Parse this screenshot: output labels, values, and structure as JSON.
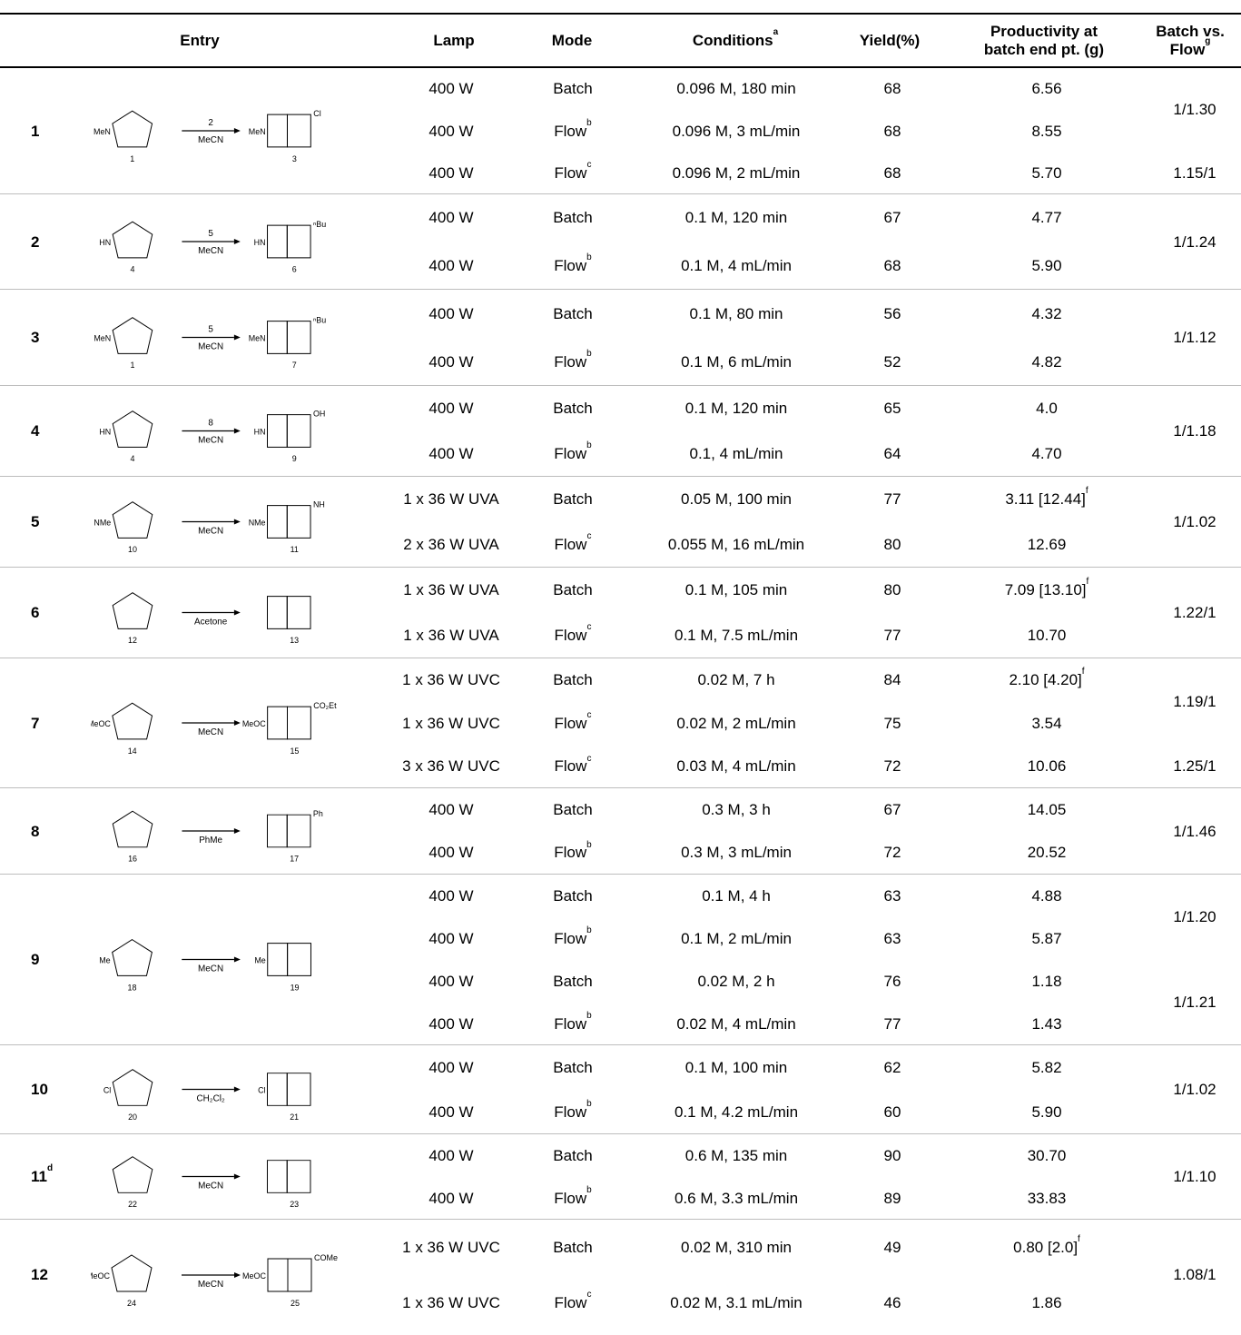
{
  "headers": {
    "entry": "Entry",
    "lamp": "Lamp",
    "mode": "Mode",
    "conditions": "Conditions",
    "conditions_sup": "a",
    "yield": "Yield(%)",
    "prod_l1": "Productivity at",
    "prod_l2": "batch end pt. (g)",
    "bvf_l1": "Batch vs.",
    "bvf_l2": "Flow",
    "bvf_sup": "g"
  },
  "entries": [
    {
      "entry": "1",
      "entry_sup": "",
      "height": 139,
      "scheme": {
        "reagent": "2",
        "solvent": "MeCN",
        "left": "1",
        "right": "3",
        "lsub": "MeN",
        "rsub": "MeN",
        "rgroup": "Cl"
      },
      "rows": [
        {
          "lamp": "400 W",
          "mode": "Batch",
          "mode_sup": "",
          "conditions": "0.096 M, 180 min",
          "yield": "68",
          "productivity": "6.56",
          "prod_sup": ""
        },
        {
          "lamp": "400 W",
          "mode": "Flow",
          "mode_sup": "b",
          "conditions": "0.096 M, 3 mL/min",
          "yield": "68",
          "productivity": "8.55",
          "prod_sup": ""
        },
        {
          "lamp": "400 W",
          "mode": "Flow",
          "mode_sup": "c",
          "conditions": "0.096 M, 2 mL/min",
          "yield": "68",
          "productivity": "5.70",
          "prod_sup": ""
        }
      ],
      "ratios": [
        {
          "value": "1/1.30",
          "row": 0.5
        },
        {
          "value": "1.15/1",
          "row": 2
        }
      ]
    },
    {
      "entry": "2",
      "entry_sup": "",
      "height": 105,
      "scheme": {
        "reagent": "5",
        "solvent": "MeCN",
        "left": "4",
        "right": "6",
        "lsub": "HN",
        "rsub": "HN",
        "rgroup": "ⁿBu"
      },
      "rows": [
        {
          "lamp": "400 W",
          "mode": "Batch",
          "mode_sup": "",
          "conditions": "0.1 M, 120 min",
          "yield": "67",
          "productivity": "4.77",
          "prod_sup": ""
        },
        {
          "lamp": "400 W",
          "mode": "Flow",
          "mode_sup": "b",
          "conditions": "0.1 M, 4 mL/min",
          "yield": "68",
          "productivity": "5.90",
          "prod_sup": ""
        }
      ],
      "ratios": [
        {
          "value": "1/1.24",
          "row": 0.5
        }
      ]
    },
    {
      "entry": "3",
      "entry_sup": "",
      "height": 106,
      "scheme": {
        "reagent": "5",
        "solvent": "MeCN",
        "left": "1",
        "right": "7",
        "lsub": "MeN",
        "rsub": "MeN",
        "rgroup": "ⁿBu"
      },
      "rows": [
        {
          "lamp": "400 W",
          "mode": "Batch",
          "mode_sup": "",
          "conditions": "0.1 M, 80 min",
          "yield": "56",
          "productivity": "4.32",
          "prod_sup": ""
        },
        {
          "lamp": "400 W",
          "mode": "Flow",
          "mode_sup": "b",
          "conditions": "0.1 M, 6 mL/min",
          "yield": "52",
          "productivity": "4.82",
          "prod_sup": ""
        }
      ],
      "ratios": [
        {
          "value": "1/1.12",
          "row": 0.5
        }
      ]
    },
    {
      "entry": "4",
      "entry_sup": "",
      "height": 100,
      "scheme": {
        "reagent": "8",
        "solvent": "MeCN",
        "left": "4",
        "right": "9",
        "lsub": "HN",
        "rsub": "HN",
        "rgroup": "OH"
      },
      "rows": [
        {
          "lamp": "400 W",
          "mode": "Batch",
          "mode_sup": "",
          "conditions": "0.1 M, 120 min",
          "yield": "65",
          "productivity": "4.0",
          "prod_sup": ""
        },
        {
          "lamp": "400 W",
          "mode": "Flow",
          "mode_sup": "b",
          "conditions": "0.1, 4 mL/min",
          "yield": "64",
          "productivity": "4.70",
          "prod_sup": ""
        }
      ],
      "ratios": [
        {
          "value": "1/1.18",
          "row": 0.5
        }
      ]
    },
    {
      "entry": "5",
      "entry_sup": "",
      "height": 100,
      "scheme": {
        "reagent": "",
        "solvent": "MeCN",
        "left": "10",
        "right": "11",
        "lsub": "NMe",
        "rsub": "NMe",
        "rgroup": "NH"
      },
      "rows": [
        {
          "lamp": "1 x 36 W UVA",
          "mode": "Batch",
          "mode_sup": "",
          "conditions": "0.05 M, 100 min",
          "yield": "77",
          "productivity": "3.11 [12.44]",
          "prod_sup": "f"
        },
        {
          "lamp": "2 x 36 W UVA",
          "mode": "Flow",
          "mode_sup": "c",
          "conditions": "0.055 M, 16 mL/min",
          "yield": "80",
          "productivity": "12.69",
          "prod_sup": ""
        }
      ],
      "ratios": [
        {
          "value": "1/1.02",
          "row": 0.5
        }
      ]
    },
    {
      "entry": "6",
      "entry_sup": "",
      "height": 100,
      "scheme": {
        "reagent": "",
        "solvent": "Acetone",
        "left": "12",
        "right": "13",
        "lsub": "",
        "rsub": "",
        "rgroup": ""
      },
      "rows": [
        {
          "lamp": "1 x 36 W UVA",
          "mode": "Batch",
          "mode_sup": "",
          "conditions": "0.1 M, 105 min",
          "yield": "80",
          "productivity": "7.09 [13.10]",
          "prod_sup": "f"
        },
        {
          "lamp": "1 x 36 W UVA",
          "mode": "Flow",
          "mode_sup": "c",
          "conditions": "0.1 M, 7.5 mL/min",
          "yield": "77",
          "productivity": "10.70",
          "prod_sup": ""
        }
      ],
      "ratios": [
        {
          "value": "1.22/1",
          "row": 0.5
        }
      ]
    },
    {
      "entry": "7",
      "entry_sup": "",
      "height": 143,
      "scheme": {
        "reagent": "",
        "solvent": "MeCN",
        "left": "14",
        "right": "15",
        "lsub": "MeOC",
        "rsub": "MeOC",
        "rgroup": "CO₂Et"
      },
      "rows": [
        {
          "lamp": "1 x 36 W UVC",
          "mode": "Batch",
          "mode_sup": "",
          "conditions": "0.02 M, 7 h",
          "yield": "84",
          "productivity": "2.10 [4.20]",
          "prod_sup": "f"
        },
        {
          "lamp": "1 x 36 W UVC",
          "mode": "Flow",
          "mode_sup": "c",
          "conditions": "0.02 M, 2 mL/min",
          "yield": "75",
          "productivity": "3.54",
          "prod_sup": ""
        },
        {
          "lamp": "3 x 36 W UVC",
          "mode": "Flow",
          "mode_sup": "c",
          "conditions": "0.03 M, 4 mL/min",
          "yield": "72",
          "productivity": "10.06",
          "prod_sup": ""
        }
      ],
      "ratios": [
        {
          "value": "1.19/1",
          "row": 0.5
        },
        {
          "value": "1.25/1",
          "row": 2
        }
      ]
    },
    {
      "entry": "8",
      "entry_sup": "",
      "height": 95,
      "scheme": {
        "reagent": "",
        "solvent": "PhMe",
        "left": "16",
        "right": "17",
        "lsub": "",
        "rsub": "",
        "rgroup": "Ph"
      },
      "rows": [
        {
          "lamp": "400 W",
          "mode": "Batch",
          "mode_sup": "",
          "conditions": "0.3 M, 3 h",
          "yield": "67",
          "productivity": "14.05",
          "prod_sup": ""
        },
        {
          "lamp": "400 W",
          "mode": "Flow",
          "mode_sup": "b",
          "conditions": "0.3 M, 3 mL/min",
          "yield": "72",
          "productivity": "20.52",
          "prod_sup": ""
        }
      ],
      "ratios": [
        {
          "value": "1/1.46",
          "row": 0.5
        }
      ]
    },
    {
      "entry": "9",
      "entry_sup": "",
      "height": 188,
      "scheme": {
        "reagent": "",
        "solvent": "MeCN",
        "left": "18",
        "right": "19",
        "lsub": "Me",
        "rsub": "Me",
        "rgroup": ""
      },
      "rows": [
        {
          "lamp": "400 W",
          "mode": "Batch",
          "mode_sup": "",
          "conditions": "0.1 M, 4 h",
          "yield": "63",
          "productivity": "4.88",
          "prod_sup": ""
        },
        {
          "lamp": "400 W",
          "mode": "Flow",
          "mode_sup": "b",
          "conditions": "0.1 M, 2 mL/min",
          "yield": "63",
          "productivity": "5.87",
          "prod_sup": ""
        },
        {
          "lamp": "400 W",
          "mode": "Batch",
          "mode_sup": "",
          "conditions": "0.02 M, 2 h",
          "yield": "76",
          "productivity": "1.18",
          "prod_sup": ""
        },
        {
          "lamp": "400 W",
          "mode": "Flow",
          "mode_sup": "b",
          "conditions": "0.02 M, 4 mL/min",
          "yield": "77",
          "productivity": "1.43",
          "prod_sup": ""
        }
      ],
      "ratios": [
        {
          "value": "1/1.20",
          "row": 0.5
        },
        {
          "value": "1/1.21",
          "row": 2.5
        }
      ]
    },
    {
      "entry": "10",
      "entry_sup": "",
      "height": 98,
      "scheme": {
        "reagent": "",
        "solvent": "CH₂Cl₂",
        "left": "20",
        "right": "21",
        "lsub": "Cl",
        "rsub": "Cl",
        "rgroup": ""
      },
      "rows": [
        {
          "lamp": "400 W",
          "mode": "Batch",
          "mode_sup": "",
          "conditions": "0.1 M, 100 min",
          "yield": "62",
          "productivity": "5.82",
          "prod_sup": ""
        },
        {
          "lamp": "400 W",
          "mode": "Flow",
          "mode_sup": "b",
          "conditions": "0.1 M, 4.2 mL/min",
          "yield": "60",
          "productivity": "5.90",
          "prod_sup": ""
        }
      ],
      "ratios": [
        {
          "value": "1/1.02",
          "row": 0.5
        }
      ]
    },
    {
      "entry": "11",
      "entry_sup": "d",
      "height": 94,
      "scheme": {
        "reagent": "",
        "solvent": "MeCN",
        "left": "22",
        "right": "23",
        "lsub": "",
        "rsub": "",
        "rgroup": ""
      },
      "rows": [
        {
          "lamp": "400 W",
          "mode": "Batch",
          "mode_sup": "",
          "conditions": "0.6 M, 135 min",
          "yield": "90",
          "productivity": "30.70",
          "prod_sup": ""
        },
        {
          "lamp": "400 W",
          "mode": "Flow",
          "mode_sup": "b",
          "conditions": "0.6 M, 3.3 mL/min",
          "yield": "89",
          "productivity": "33.83",
          "prod_sup": ""
        }
      ],
      "ratios": [
        {
          "value": "1/1.10",
          "row": 0.5
        }
      ]
    },
    {
      "entry": "12",
      "entry_sup": "",
      "height": 122,
      "scheme": {
        "reagent": "",
        "solvent": "MeCN",
        "left": "24",
        "right": "25",
        "lsub": "MeOC",
        "rsub": "MeOC",
        "rgroup": "COMe"
      },
      "rows": [
        {
          "lamp": "1 x 36 W UVC",
          "mode": "Batch",
          "mode_sup": "",
          "conditions": "0.02 M, 310 min",
          "yield": "49",
          "productivity": "0.80 [2.0]",
          "prod_sup": "f"
        },
        {
          "lamp": "1 x 36 W UVC",
          "mode": "Flow",
          "mode_sup": "c",
          "conditions": "0.02 M, 3.1  mL/min",
          "yield": "46",
          "productivity": "1.86",
          "prod_sup": ""
        }
      ],
      "ratios": [
        {
          "value": "1.08/1",
          "row": 0.5
        }
      ]
    }
  ]
}
